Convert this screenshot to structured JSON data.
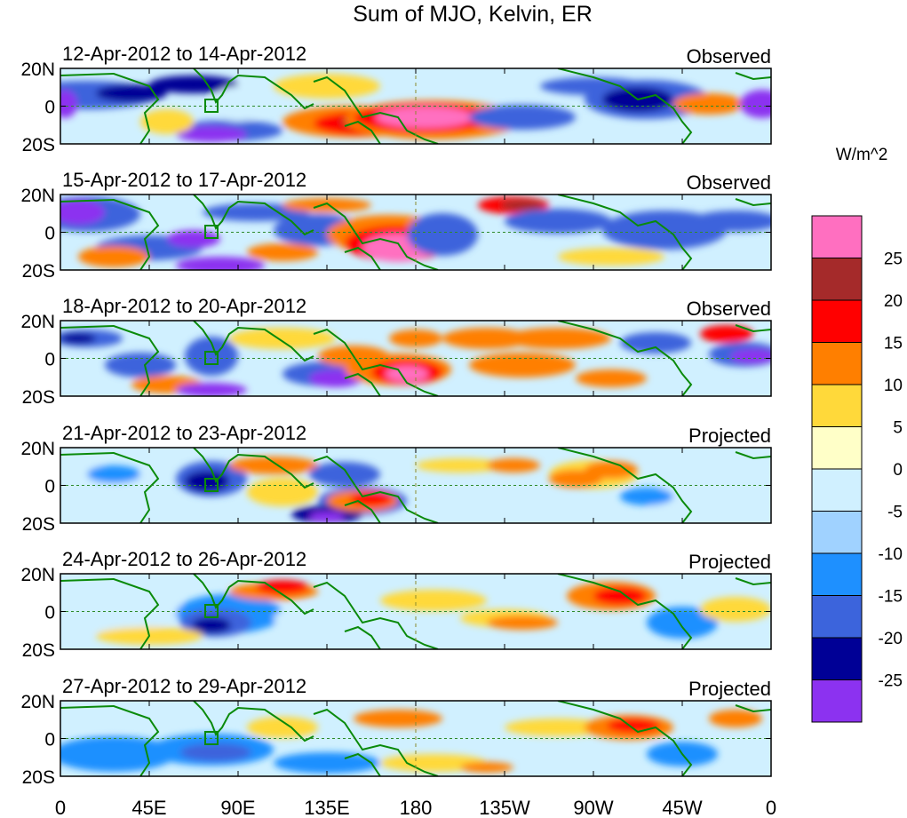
{
  "title": "Sum of MJO, Kelvin, ER",
  "panels": [
    {
      "date_range": "12-Apr-2012 to 14-Apr-2012",
      "status": "Observed"
    },
    {
      "date_range": "15-Apr-2012 to 17-Apr-2012",
      "status": "Observed"
    },
    {
      "date_range": "18-Apr-2012 to 20-Apr-2012",
      "status": "Observed"
    },
    {
      "date_range": "21-Apr-2012 to 23-Apr-2012",
      "status": "Projected"
    },
    {
      "date_range": "24-Apr-2012 to 26-Apr-2012",
      "status": "Projected"
    },
    {
      "date_range": "27-Apr-2012 to 29-Apr-2012",
      "status": "Projected"
    }
  ],
  "lat_labels": [
    "20N",
    "0",
    "20S"
  ],
  "lon_labels": [
    "0",
    "45E",
    "90E",
    "135E",
    "180",
    "135W",
    "90W",
    "45W",
    "0"
  ],
  "colorbar": {
    "units": "W/m^2",
    "tick_labels": [
      "25",
      "20",
      "15",
      "10",
      "5",
      "0",
      "-5",
      "-10",
      "-15",
      "-20",
      "-25"
    ],
    "colors": [
      "#ff6fc0",
      "#a52a2a",
      "#ff0000",
      "#ff7f00",
      "#ffd93a",
      "#ffffc8",
      "#d0f0ff",
      "#a0d2ff",
      "#1e90ff",
      "#3c64dc",
      "#000096",
      "#8c32f0"
    ]
  },
  "colors": {
    "coast": "#0a8a0a",
    "grid": "#2d8a2d"
  }
}
